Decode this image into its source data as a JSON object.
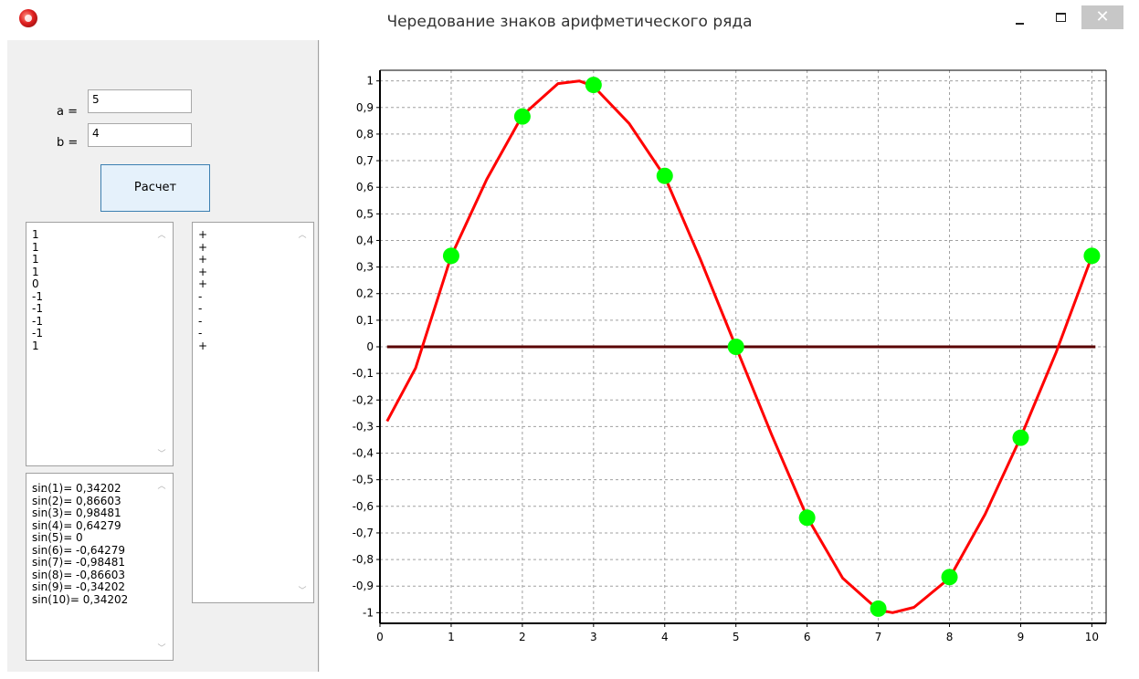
{
  "window": {
    "title": "Чередование знаков арифметического ряда",
    "close_glyph": "✕"
  },
  "inputs": {
    "a_label": "a =",
    "a_value": "5",
    "b_label": "b =",
    "b_value": "4"
  },
  "calc_button_label": "Расчет",
  "list_values": [
    "1",
    "1",
    "1",
    "1",
    "0",
    "-1",
    "-1",
    "-1",
    "-1",
    "1"
  ],
  "list_signs": [
    "+",
    "+",
    "+",
    "+",
    "+",
    "-",
    "-",
    "-",
    "-",
    "+"
  ],
  "list_sines": [
    "sin(1)= 0,34202",
    "sin(2)= 0,86603",
    "sin(3)= 0,98481",
    "sin(4)= 0,64279",
    "sin(5)= 0",
    "sin(6)= -0,64279",
    "sin(7)= -0,98481",
    "sin(8)= -0,86603",
    "sin(9)= -0,34202",
    "sin(10)= 0,34202"
  ],
  "icons": [
    "app-icon",
    "minimize-icon",
    "maximize-icon",
    "close-icon",
    "scroll-up-icon",
    "scroll-down-icon"
  ],
  "chart_data": {
    "type": "line",
    "x_ticks": [
      "0",
      "1",
      "2",
      "3",
      "4",
      "5",
      "6",
      "7",
      "8",
      "9",
      "10"
    ],
    "y_ticks": [
      "1",
      "0,9",
      "0,8",
      "0,7",
      "0,6",
      "0,5",
      "0,4",
      "0,3",
      "0,2",
      "0,1",
      "0",
      "-0,1",
      "-0,2",
      "-0,3",
      "-0,4",
      "-0,5",
      "-0,6",
      "-0,7",
      "-0,8",
      "-0,9",
      "-1"
    ],
    "xlim": [
      0,
      10.2
    ],
    "ylim": [
      -1.04,
      1.04
    ],
    "grid": true,
    "series": [
      {
        "x": [
          0.1,
          0.5,
          1,
          1.5,
          2,
          2.5,
          2.8,
          3,
          3.5,
          4,
          4.5,
          5,
          5.5,
          6,
          6.5,
          7,
          7.2,
          7.5,
          8,
          8.5,
          9,
          9.5,
          10
        ],
        "y": [
          -0.28,
          -0.08,
          0.34,
          0.63,
          0.87,
          0.99,
          1.0,
          0.98,
          0.84,
          0.64,
          0.33,
          0,
          -0.33,
          -0.64,
          -0.87,
          -0.99,
          -1.0,
          -0.98,
          -0.87,
          -0.63,
          -0.34,
          -0.02,
          0.34
        ],
        "color": "#ff0000"
      },
      {
        "x": [
          1,
          2,
          3,
          4,
          5,
          6,
          7,
          8,
          9,
          10
        ],
        "y": [
          0.34202,
          0.86603,
          0.98481,
          0.64279,
          0,
          -0.64279,
          -0.98481,
          -0.86603,
          -0.34202,
          0.34202
        ],
        "color": "#00ff00"
      },
      {
        "x": [
          0.1,
          10.05
        ],
        "y": [
          0,
          0
        ],
        "color": "#5a0000"
      }
    ]
  }
}
